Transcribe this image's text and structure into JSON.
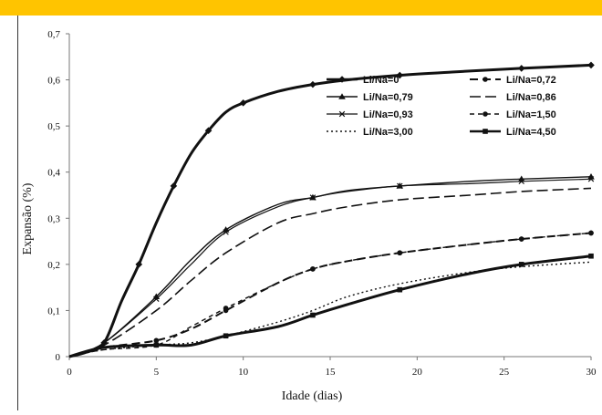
{
  "colors": {
    "band": "#ffc400",
    "ink": "#111111"
  },
  "chart_data": {
    "type": "line",
    "title": "",
    "xlabel": "Idade (dias)",
    "ylabel": "Expansão (%)",
    "xlim": [
      0,
      30
    ],
    "ylim": [
      0,
      0.7
    ],
    "x_ticks": [
      "0",
      "5",
      "10",
      "15",
      "20",
      "25",
      "30"
    ],
    "y_ticks": [
      "0",
      "0,1",
      "0,2",
      "0,3",
      "0,4",
      "0,5",
      "0,6",
      "0,7"
    ],
    "grid": false,
    "legend_position": "top-right",
    "legend_columns": 2,
    "series": [
      {
        "name": "Li/Na=0",
        "style": "solid",
        "marker": "diamond",
        "width": 3,
        "points": [
          [
            0,
            0
          ],
          [
            1,
            0.01
          ],
          [
            2,
            0.03
          ],
          [
            3,
            0.12
          ],
          [
            4,
            0.2
          ],
          [
            5,
            0.29
          ],
          [
            6,
            0.37
          ],
          [
            7,
            0.44
          ],
          [
            8,
            0.49
          ],
          [
            9,
            0.53
          ],
          [
            10,
            0.55
          ],
          [
            12,
            0.575
          ],
          [
            14,
            0.59
          ],
          [
            16,
            0.6
          ],
          [
            19,
            0.61
          ],
          [
            22,
            0.617
          ],
          [
            26,
            0.625
          ],
          [
            30,
            0.632
          ]
        ]
      },
      {
        "name": "Li/Na=0,72",
        "style": "dash-bold",
        "marker": "circle",
        "width": 2,
        "points": [
          [
            0,
            0
          ],
          [
            2,
            0.02
          ],
          [
            5,
            0.035
          ],
          [
            7,
            0.06
          ],
          [
            9,
            0.1
          ],
          [
            12,
            0.16
          ],
          [
            14,
            0.19
          ],
          [
            16,
            0.207
          ],
          [
            19,
            0.225
          ],
          [
            23,
            0.243
          ],
          [
            26,
            0.255
          ],
          [
            30,
            0.268
          ]
        ]
      },
      {
        "name": "Li/Na=0,79",
        "style": "solid",
        "marker": "triangle",
        "width": 1.4,
        "points": [
          [
            0,
            0
          ],
          [
            2,
            0.03
          ],
          [
            5,
            0.13
          ],
          [
            7,
            0.21
          ],
          [
            9,
            0.275
          ],
          [
            12,
            0.33
          ],
          [
            14,
            0.345
          ],
          [
            16,
            0.36
          ],
          [
            19,
            0.37
          ],
          [
            23,
            0.38
          ],
          [
            26,
            0.385
          ],
          [
            30,
            0.39
          ]
        ]
      },
      {
        "name": "Li/Na=0,86",
        "style": "dash-long",
        "marker": "none",
        "width": 1.6,
        "points": [
          [
            0,
            0
          ],
          [
            2,
            0.025
          ],
          [
            5,
            0.1
          ],
          [
            7,
            0.165
          ],
          [
            9,
            0.225
          ],
          [
            12,
            0.29
          ],
          [
            14,
            0.31
          ],
          [
            16,
            0.325
          ],
          [
            19,
            0.34
          ],
          [
            23,
            0.35
          ],
          [
            26,
            0.358
          ],
          [
            30,
            0.365
          ]
        ]
      },
      {
        "name": "Li/Na=0,93",
        "style": "solid",
        "marker": "x",
        "width": 1.2,
        "points": [
          [
            0,
            0
          ],
          [
            2,
            0.03
          ],
          [
            5,
            0.125
          ],
          [
            7,
            0.2
          ],
          [
            9,
            0.27
          ],
          [
            12,
            0.325
          ],
          [
            14,
            0.345
          ],
          [
            16,
            0.358
          ],
          [
            19,
            0.37
          ],
          [
            23,
            0.375
          ],
          [
            26,
            0.38
          ],
          [
            30,
            0.385
          ]
        ]
      },
      {
        "name": "Li/Na=1,50",
        "style": "dash-short",
        "marker": "circle",
        "width": 1.4,
        "points": [
          [
            0,
            0
          ],
          [
            2,
            0.015
          ],
          [
            5,
            0.025
          ],
          [
            7,
            0.065
          ],
          [
            9,
            0.105
          ],
          [
            12,
            0.16
          ],
          [
            14,
            0.19
          ],
          [
            16,
            0.207
          ],
          [
            19,
            0.225
          ],
          [
            23,
            0.243
          ],
          [
            26,
            0.255
          ],
          [
            30,
            0.268
          ]
        ]
      },
      {
        "name": "Li/Na=3,00",
        "style": "dotted",
        "marker": "none",
        "width": 1.4,
        "points": [
          [
            0,
            0
          ],
          [
            2,
            0.015
          ],
          [
            5,
            0.025
          ],
          [
            7,
            0.03
          ],
          [
            9,
            0.045
          ],
          [
            12,
            0.075
          ],
          [
            14,
            0.1
          ],
          [
            16,
            0.13
          ],
          [
            19,
            0.158
          ],
          [
            23,
            0.183
          ],
          [
            26,
            0.195
          ],
          [
            30,
            0.205
          ]
        ]
      },
      {
        "name": "Li/Na=4,50",
        "style": "solid",
        "marker": "square",
        "width": 3,
        "points": [
          [
            0,
            0
          ],
          [
            2,
            0.02
          ],
          [
            5,
            0.025
          ],
          [
            7,
            0.025
          ],
          [
            9,
            0.045
          ],
          [
            12,
            0.065
          ],
          [
            14,
            0.09
          ],
          [
            16,
            0.113
          ],
          [
            19,
            0.145
          ],
          [
            23,
            0.18
          ],
          [
            26,
            0.2
          ],
          [
            30,
            0.218
          ]
        ]
      }
    ]
  }
}
